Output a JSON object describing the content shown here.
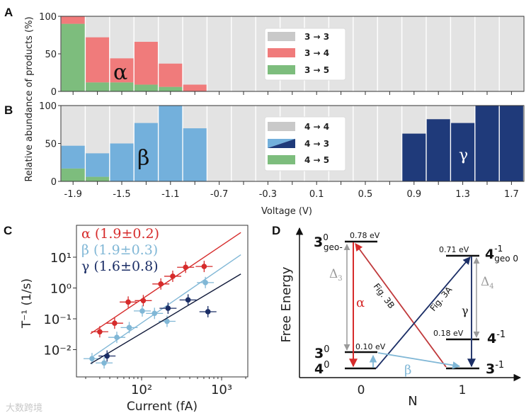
{
  "panels": {
    "a": "A",
    "b": "B",
    "c": "C",
    "d": "D"
  },
  "shared": {
    "ylabel": "Relative abundance of products (%)",
    "xlabel": "Voltage (V)",
    "yticks": [
      "100",
      "50",
      "0"
    ],
    "xticks": [
      "-1.9",
      "-1.5",
      "-1.1",
      "-0.7",
      "-0.3",
      "0.1",
      "0.5",
      "0.9",
      "1.3",
      "1.7"
    ]
  },
  "colors": {
    "grey": "#e3e3e3",
    "legend_grey": "#c9c9c9",
    "red": "#f07b7b",
    "green": "#7dbd7d",
    "blue": "#73b0dc",
    "navy": "#1f3a7a",
    "c_red": "#d62b2b",
    "c_blue": "#80b7d6",
    "c_navy": "#1b2e66",
    "grey_arrow": "#9a9a9a"
  },
  "chart_data": [
    {
      "id": "A",
      "type": "bar",
      "stacked": true,
      "x": [
        -1.9,
        -1.7,
        -1.5,
        -1.3,
        -1.1,
        -0.9,
        -0.7,
        -0.5,
        -0.3,
        -0.1,
        0.1,
        0.3,
        0.5,
        0.7,
        0.9,
        1.1,
        1.3,
        1.5,
        1.7
      ],
      "series": [
        {
          "name": "3 → 5",
          "values": [
            90,
            12,
            12,
            9,
            6,
            0,
            0,
            0,
            0,
            0,
            0,
            0,
            0,
            0,
            0,
            0,
            0,
            0,
            0
          ]
        },
        {
          "name": "3 → 4",
          "values": [
            10,
            60,
            32,
            57,
            31,
            9,
            0,
            0,
            0,
            0,
            0,
            0,
            0,
            0,
            0,
            0,
            0,
            0,
            0
          ]
        },
        {
          "name": "3 → 3",
          "values": "remainder to 100"
        }
      ],
      "legend": [
        "3 → 3",
        "3 → 4",
        "3 → 5"
      ],
      "legend_position": "center",
      "annotation": "α",
      "ylim": [
        0,
        100
      ]
    },
    {
      "id": "B",
      "type": "bar",
      "stacked": true,
      "x": [
        -1.9,
        -1.7,
        -1.5,
        -1.3,
        -1.1,
        -0.9,
        -0.7,
        -0.5,
        -0.3,
        -0.1,
        0.1,
        0.3,
        0.5,
        0.7,
        0.9,
        1.1,
        1.3,
        1.5,
        1.7
      ],
      "series": [
        {
          "name": "4 → 5",
          "values": [
            17,
            6,
            0,
            0,
            0,
            0,
            0,
            0,
            0,
            0,
            0,
            0,
            0,
            0,
            0,
            0,
            0,
            0,
            0
          ]
        },
        {
          "name": "4 → 3",
          "values": [
            30,
            31,
            50,
            77,
            100,
            70,
            0,
            0,
            0,
            0,
            0,
            0,
            0,
            0,
            63,
            82,
            77,
            100,
            100
          ]
        },
        {
          "name": "4 → 4",
          "values": "remainder to 100"
        }
      ],
      "legend": [
        "4 → 4",
        "4 → 3",
        "4 → 5"
      ],
      "legend_position": "center",
      "annotations": [
        "β",
        "γ"
      ],
      "ylim": [
        0,
        100
      ]
    },
    {
      "id": "C",
      "type": "scatter",
      "xscale": "log",
      "yscale": "log",
      "xlabel": "Current (fA)",
      "ylabel": "T⁻¹ (1/s)",
      "xticks": [
        "10²",
        "10³"
      ],
      "yticks": [
        "10¹",
        "10⁰",
        "10⁻¹",
        "10⁻²"
      ],
      "xlim": [
        15,
        2100
      ],
      "ylim": [
        0.0013,
        107
      ],
      "series": [
        {
          "name": "α",
          "label": "α (1.9±0.2)",
          "x": [
            30,
            46,
            68,
            105,
            174,
            245,
            355,
            605
          ],
          "y": [
            0.038,
            0.072,
            0.35,
            0.39,
            1.35,
            2.4,
            4.7,
            5.0
          ],
          "fit": {
            "x": [
              23,
              1740
            ],
            "y": [
              0.033,
              63
            ]
          }
        },
        {
          "name": "β",
          "label": "β (1.9±0.3)",
          "x": [
            24,
            34,
            49,
            70,
            102,
            145,
            208,
            627
          ],
          "y": [
            0.0051,
            0.0037,
            0.025,
            0.052,
            0.18,
            0.15,
            0.083,
            1.5
          ],
          "fit": {
            "x": [
              25,
              1740
            ],
            "y": [
              0.0062,
              12
            ]
          }
        },
        {
          "name": "γ",
          "label": "γ (1.6±0.8)",
          "x": [
            37,
            214,
            381,
            675
          ],
          "y": [
            0.0062,
            0.22,
            0.41,
            0.17
          ],
          "fit": {
            "x": [
              23,
              1740
            ],
            "y": [
              0.0035,
              2.85
            ]
          }
        }
      ],
      "legend_position": "top-left"
    }
  ],
  "diagram": {
    "ylabel": "Free Energy",
    "xlabel": "N",
    "xticks": [
      "0",
      "1"
    ],
    "levels": [
      {
        "main": "3",
        "sup": "0",
        "sub": "geo-",
        "energy": "0.78 eV"
      },
      {
        "main": "3",
        "sup": "0",
        "sub": "",
        "energy": "0.10 eV"
      },
      {
        "main": "4",
        "sup": "0",
        "sub": "",
        "energy": ""
      },
      {
        "main": "4",
        "sup": "-1",
        "sub": "geo 0",
        "energy": "0.71 eV"
      },
      {
        "main": "4",
        "sup": "-1",
        "sub": "",
        "energy": "0.18 eV"
      },
      {
        "main": "3",
        "sup": "-1",
        "sub": "",
        "energy": ""
      }
    ],
    "arrows": {
      "alpha": "α",
      "beta": "β",
      "gamma": "γ",
      "delta3": "Δ",
      "delta3_sub": "3",
      "delta4": "Δ",
      "delta4_sub": "4",
      "fig3a": "Fig. 3A",
      "fig3b": "Fig. 3B"
    }
  },
  "watermark": "大数跨境"
}
